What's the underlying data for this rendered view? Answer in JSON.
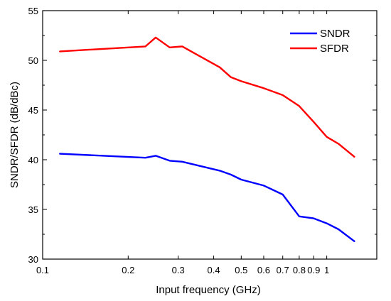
{
  "chart_data": {
    "type": "line",
    "xlabel": "Input frequency (GHz)",
    "ylabel": "SNDR/SFDR (dB/dBc)",
    "xscale": "log",
    "xlim": [
      0.1,
      1.5
    ],
    "ylim": [
      30,
      55
    ],
    "x_ticks": [
      {
        "value": 0.1,
        "label": "0.1"
      },
      {
        "value": 0.2,
        "label": "0.2"
      },
      {
        "value": 0.3,
        "label": "0.3"
      },
      {
        "value": 0.4,
        "label": "0.4"
      },
      {
        "value": 0.5,
        "label": "0.5"
      },
      {
        "value": 0.6,
        "label": "0.6"
      },
      {
        "value": 0.7,
        "label": "0.7"
      },
      {
        "value": 0.8,
        "label": "0.8"
      },
      {
        "value": 0.9,
        "label": "0.9"
      },
      {
        "value": 1.0,
        "label": "1"
      }
    ],
    "y_ticks": [
      30,
      35,
      40,
      45,
      50,
      55
    ],
    "grid": false,
    "legend_position": "top-right",
    "series": [
      {
        "name": "SNDR",
        "color": "#0000ff",
        "points": [
          [
            0.115,
            40.6
          ],
          [
            0.23,
            40.2
          ],
          [
            0.25,
            40.4
          ],
          [
            0.28,
            39.9
          ],
          [
            0.31,
            39.8
          ],
          [
            0.42,
            38.9
          ],
          [
            0.46,
            38.5
          ],
          [
            0.5,
            38.0
          ],
          [
            0.6,
            37.4
          ],
          [
            0.7,
            36.5
          ],
          [
            0.8,
            34.3
          ],
          [
            0.9,
            34.1
          ],
          [
            1.0,
            33.6
          ],
          [
            1.1,
            33.0
          ],
          [
            1.25,
            31.8
          ]
        ]
      },
      {
        "name": "SFDR",
        "color": "#ff0000",
        "points": [
          [
            0.115,
            50.9
          ],
          [
            0.23,
            51.4
          ],
          [
            0.25,
            52.3
          ],
          [
            0.28,
            51.3
          ],
          [
            0.31,
            51.4
          ],
          [
            0.42,
            49.3
          ],
          [
            0.46,
            48.3
          ],
          [
            0.5,
            47.9
          ],
          [
            0.6,
            47.2
          ],
          [
            0.7,
            46.5
          ],
          [
            0.8,
            45.4
          ],
          [
            0.9,
            43.8
          ],
          [
            1.0,
            42.3
          ],
          [
            1.1,
            41.6
          ],
          [
            1.25,
            40.3
          ]
        ]
      }
    ]
  }
}
